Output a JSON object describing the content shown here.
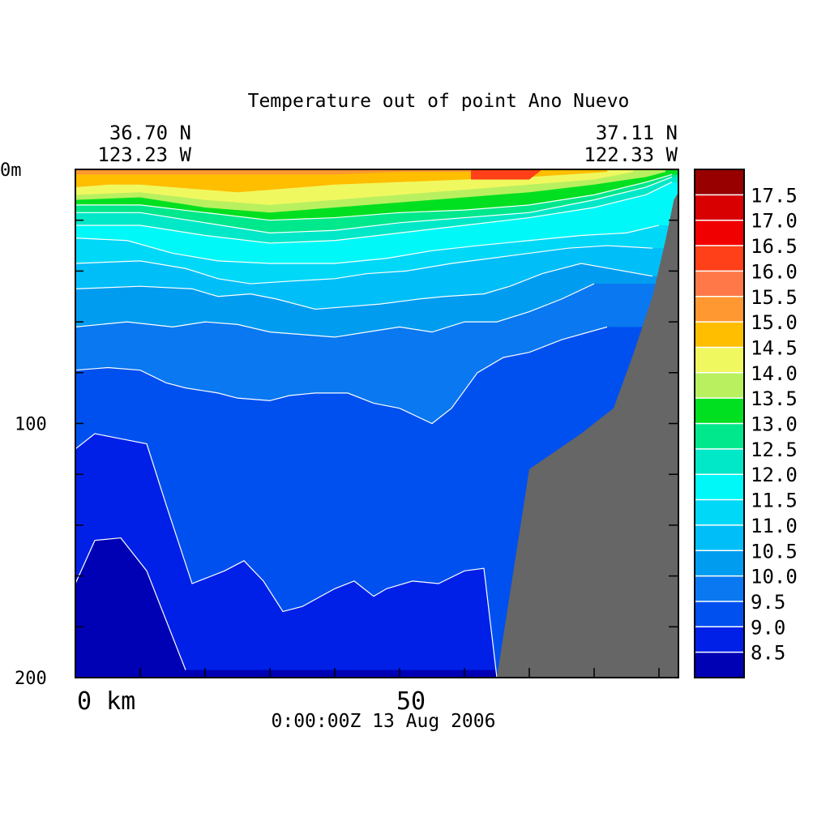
{
  "chart_data": {
    "type": "heatmap",
    "title": "Temperature out of point Ano Nuevo",
    "start_point": {
      "lat": "36.70 N",
      "lon": "123.23 W"
    },
    "end_point": {
      "lat": "37.11 N",
      "lon": "122.33 W"
    },
    "timestamp": "0:00:00Z  13 Aug 2006",
    "x_axis": {
      "range_km": [
        0,
        93
      ],
      "tick_labels": [
        {
          "value": 0,
          "label": "0 km"
        },
        {
          "value": 50,
          "label": "50"
        }
      ],
      "minor_tick_step": 10
    },
    "y_axis": {
      "range_m": [
        0,
        200
      ],
      "inverted": true,
      "tick_labels": [
        {
          "value": 0,
          "label": "0m"
        },
        {
          "value": 100,
          "label": "100"
        },
        {
          "value": 200,
          "label": "200"
        }
      ],
      "minor_tick_step": 20
    },
    "colorbar": {
      "levels": [
        {
          "min": 8.0,
          "max": 8.5,
          "color": "#0000b4"
        },
        {
          "min": 8.5,
          "max": 9.0,
          "color": "#0020e8"
        },
        {
          "min": 9.0,
          "max": 9.5,
          "color": "#0050f0"
        },
        {
          "min": 9.5,
          "max": 10.0,
          "color": "#0a78f0"
        },
        {
          "min": 10.0,
          "max": 10.5,
          "color": "#009cf0"
        },
        {
          "min": 10.5,
          "max": 11.0,
          "color": "#00bef8"
        },
        {
          "min": 11.0,
          "max": 11.5,
          "color": "#00d8f8"
        },
        {
          "min": 11.5,
          "max": 12.0,
          "color": "#00f8f8"
        },
        {
          "min": 12.0,
          "max": 12.5,
          "color": "#00e8c8"
        },
        {
          "min": 12.5,
          "max": 13.0,
          "color": "#00e88c"
        },
        {
          "min": 13.0,
          "max": 13.5,
          "color": "#00e020"
        },
        {
          "min": 13.5,
          "max": 14.0,
          "color": "#b8f060"
        },
        {
          "min": 14.0,
          "max": 14.5,
          "color": "#f0f860"
        },
        {
          "min": 14.5,
          "max": 15.0,
          "color": "#ffbe00"
        },
        {
          "min": 15.0,
          "max": 15.5,
          "color": "#ff9830"
        },
        {
          "min": 15.5,
          "max": 16.0,
          "color": "#ff7848"
        },
        {
          "min": 16.0,
          "max": 16.5,
          "color": "#ff4018"
        },
        {
          "min": 16.5,
          "max": 17.0,
          "color": "#f00000"
        },
        {
          "min": 17.0,
          "max": 17.5,
          "color": "#d80000"
        },
        {
          "min": 17.5,
          "max": 18.0,
          "color": "#980000"
        }
      ],
      "tick_labels": [
        "17.5",
        "17.0",
        "16.5",
        "16.0",
        "15.5",
        "15.0",
        "14.5",
        "14.0",
        "13.5",
        "13.0",
        "12.5",
        "12.0",
        "11.5",
        "11.0",
        "10.5",
        "10.0",
        "9.5",
        "9.0",
        "8.5"
      ]
    },
    "bathymetry_color": "#666666",
    "bathymetry_km_depth_m": [
      [
        65,
        200
      ],
      [
        70,
        118
      ],
      [
        78,
        104
      ],
      [
        83,
        94
      ],
      [
        86,
        73
      ],
      [
        89,
        50
      ],
      [
        91,
        28
      ],
      [
        92.3,
        12
      ],
      [
        93,
        9
      ]
    ],
    "surface_bottom_isotherms": [
      {
        "level": 8.5,
        "points": [
          [
            0,
            163
          ],
          [
            3,
            146
          ],
          [
            7,
            145
          ],
          [
            11,
            158
          ],
          [
            17,
            197
          ]
        ]
      },
      {
        "level": 9.0,
        "points": [
          [
            0,
            110
          ],
          [
            3,
            104
          ],
          [
            7,
            106
          ],
          [
            11,
            108
          ],
          [
            14,
            132
          ],
          [
            18,
            163
          ],
          [
            23,
            158
          ],
          [
            26,
            154
          ],
          [
            29,
            162
          ],
          [
            32,
            174
          ],
          [
            35,
            172
          ],
          [
            40,
            165
          ],
          [
            43,
            162
          ],
          [
            46,
            168
          ],
          [
            48,
            165
          ],
          [
            52,
            162
          ],
          [
            56,
            163
          ],
          [
            60,
            158
          ],
          [
            63,
            157
          ],
          [
            65,
            200
          ]
        ]
      },
      {
        "level": 9.5,
        "points": [
          [
            0,
            79
          ],
          [
            5,
            78
          ],
          [
            10,
            79
          ],
          [
            14,
            84
          ],
          [
            17,
            86
          ],
          [
            22,
            88
          ],
          [
            25,
            90
          ],
          [
            30,
            91
          ],
          [
            33,
            89
          ],
          [
            37,
            88
          ],
          [
            42,
            88
          ],
          [
            46,
            92
          ],
          [
            50,
            94
          ],
          [
            55,
            100
          ],
          [
            58,
            94
          ],
          [
            62,
            80
          ],
          [
            66,
            74
          ],
          [
            70,
            72
          ],
          [
            75,
            67
          ],
          [
            82,
            62
          ]
        ]
      },
      {
        "level": 10.0,
        "points": [
          [
            0,
            62
          ],
          [
            8,
            60
          ],
          [
            15,
            62
          ],
          [
            20,
            60
          ],
          [
            25,
            61
          ],
          [
            30,
            64
          ],
          [
            35,
            65
          ],
          [
            40,
            66
          ],
          [
            45,
            64
          ],
          [
            50,
            62
          ],
          [
            55,
            64
          ],
          [
            60,
            60
          ],
          [
            65,
            60
          ],
          [
            70,
            56
          ],
          [
            75,
            51
          ],
          [
            80,
            45
          ]
        ]
      },
      {
        "level": 10.5,
        "points": [
          [
            0,
            47
          ],
          [
            10,
            46
          ],
          [
            18,
            47
          ],
          [
            22,
            50
          ],
          [
            27,
            49
          ],
          [
            31,
            51
          ],
          [
            37,
            55
          ],
          [
            42,
            54
          ],
          [
            47,
            53
          ],
          [
            53,
            51
          ],
          [
            57,
            50
          ],
          [
            63,
            49
          ],
          [
            67,
            46
          ],
          [
            72,
            41
          ],
          [
            78,
            37
          ],
          [
            89,
            42
          ]
        ]
      },
      {
        "level": 11.0,
        "points": [
          [
            0,
            37
          ],
          [
            10,
            36
          ],
          [
            17,
            39
          ],
          [
            22,
            43
          ],
          [
            27,
            45
          ],
          [
            33,
            44
          ],
          [
            40,
            43
          ],
          [
            45,
            41
          ],
          [
            51,
            40
          ],
          [
            58,
            37
          ],
          [
            64,
            35
          ],
          [
            70,
            33
          ],
          [
            76,
            31
          ],
          [
            82,
            30
          ],
          [
            89,
            31
          ]
        ]
      },
      {
        "level": 11.5,
        "points": [
          [
            0,
            27
          ],
          [
            8,
            28
          ],
          [
            15,
            33
          ],
          [
            22,
            36
          ],
          [
            30,
            37
          ],
          [
            40,
            37
          ],
          [
            48,
            35
          ],
          [
            55,
            32
          ],
          [
            62,
            30
          ],
          [
            70,
            28
          ],
          [
            78,
            26
          ],
          [
            85,
            25
          ],
          [
            90,
            22
          ]
        ]
      },
      {
        "level": 12.0,
        "points": [
          [
            0,
            22
          ],
          [
            10,
            22
          ],
          [
            20,
            26
          ],
          [
            30,
            29
          ],
          [
            40,
            28
          ],
          [
            50,
            25
          ],
          [
            60,
            22
          ],
          [
            70,
            19
          ],
          [
            80,
            15
          ],
          [
            88,
            10
          ],
          [
            92,
            5
          ]
        ]
      },
      {
        "level": 12.5,
        "points": [
          [
            0,
            17
          ],
          [
            10,
            17
          ],
          [
            20,
            21
          ],
          [
            30,
            25
          ],
          [
            40,
            24
          ],
          [
            50,
            21
          ],
          [
            60,
            19
          ],
          [
            70,
            17
          ],
          [
            80,
            12
          ],
          [
            88,
            7
          ],
          [
            92,
            3
          ]
        ]
      },
      {
        "level": 13.0,
        "points": [
          [
            0,
            14
          ],
          [
            10,
            14
          ],
          [
            20,
            17
          ],
          [
            30,
            20
          ],
          [
            40,
            19
          ],
          [
            50,
            17
          ],
          [
            60,
            16
          ],
          [
            70,
            14
          ],
          [
            80,
            10
          ],
          [
            88,
            5
          ],
          [
            92,
            2
          ]
        ]
      }
    ]
  }
}
